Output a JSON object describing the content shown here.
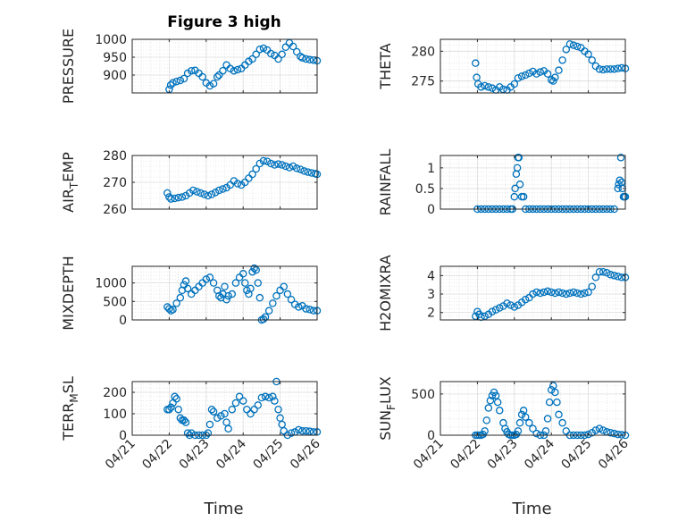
{
  "figure": {
    "title": "Figure 3 high",
    "marker_color": "#0072BD",
    "grid": true,
    "marker": "open-circle"
  },
  "chart_data": [
    {
      "type": "scatter",
      "ylabel": "PRESSURE",
      "xlabel": "",
      "xlim": [
        "04/21",
        "04/26"
      ],
      "ylim": [
        850,
        1000
      ],
      "yticks": [
        900,
        950,
        1000
      ],
      "ytick_labels": [
        "900",
        "950",
        "1000"
      ],
      "x": [
        1.0,
        1.04,
        1.1,
        1.2,
        1.3,
        1.4,
        1.5,
        1.6,
        1.7,
        1.8,
        1.9,
        2.0,
        2.1,
        2.2,
        2.3,
        2.35,
        2.45,
        2.55,
        2.65,
        2.75,
        2.85,
        2.95,
        3.05,
        3.15,
        3.25,
        3.35,
        3.45,
        3.55,
        3.65,
        3.75,
        3.85,
        3.95,
        4.05,
        4.15,
        4.25,
        4.35,
        4.45,
        4.55,
        4.6,
        4.7,
        4.8,
        4.9,
        5.0
      ],
      "y": [
        860,
        872,
        878,
        882,
        885,
        890,
        905,
        912,
        913,
        905,
        895,
        878,
        870,
        876,
        895,
        900,
        912,
        928,
        918,
        912,
        915,
        918,
        928,
        938,
        945,
        958,
        972,
        975,
        970,
        960,
        955,
        945,
        958,
        978,
        990,
        980,
        965,
        952,
        948,
        945,
        943,
        942,
        940
      ]
    },
    {
      "type": "scatter",
      "ylabel": "THETA",
      "xlabel": "",
      "xlim": [
        "04/21",
        "04/26"
      ],
      "ylim": [
        273,
        282
      ],
      "yticks": [
        275,
        280
      ],
      "ytick_labels": [
        "275",
        "280"
      ],
      "x": [
        0.95,
        0.98,
        1.02,
        1.1,
        1.2,
        1.3,
        1.4,
        1.5,
        1.6,
        1.7,
        1.8,
        1.9,
        2.0,
        2.1,
        2.2,
        2.3,
        2.4,
        2.5,
        2.6,
        2.7,
        2.8,
        2.9,
        3.0,
        3.05,
        3.1,
        3.2,
        3.3,
        3.4,
        3.5,
        3.6,
        3.7,
        3.8,
        3.9,
        4.0,
        4.1,
        4.2,
        4.3,
        4.4,
        4.5,
        4.6,
        4.7,
        4.8,
        4.9,
        5.0
      ],
      "y": [
        278,
        275.6,
        274.5,
        274,
        274.2,
        274,
        273.8,
        273.5,
        274,
        273.6,
        273.5,
        274,
        274.5,
        275.5,
        275.8,
        276,
        276.3,
        276.6,
        276.2,
        276.5,
        276.7,
        276.2,
        275.2,
        275,
        275.6,
        276.8,
        278.5,
        280.3,
        281.2,
        281,
        280.8,
        280.6,
        280,
        279.5,
        278.5,
        277.5,
        277,
        276.9,
        277,
        277,
        277,
        277.1,
        277.2,
        277.1
      ]
    },
    {
      "type": "scatter",
      "ylabel": "AIR_TEMP",
      "xlabel": "",
      "xlim": [
        "04/21",
        "04/26"
      ],
      "ylim": [
        260,
        280
      ],
      "yticks": [
        260,
        270,
        280
      ],
      "ytick_labels": [
        "260",
        "270",
        "280"
      ],
      "x": [
        0.95,
        1.0,
        1.05,
        1.15,
        1.25,
        1.35,
        1.45,
        1.55,
        1.65,
        1.75,
        1.85,
        1.95,
        2.05,
        2.15,
        2.25,
        2.35,
        2.45,
        2.55,
        2.65,
        2.75,
        2.85,
        2.95,
        3.05,
        3.15,
        3.25,
        3.35,
        3.45,
        3.55,
        3.65,
        3.75,
        3.85,
        3.95,
        4.05,
        4.15,
        4.25,
        4.35,
        4.45,
        4.55,
        4.65,
        4.75,
        4.85,
        4.95,
        5.0
      ],
      "y": [
        266,
        264.5,
        263.8,
        264,
        264.3,
        264.5,
        265,
        266,
        267,
        266.5,
        266,
        265.5,
        265,
        265.5,
        266.2,
        267,
        267.5,
        268,
        269,
        270.5,
        269.5,
        269,
        270,
        271.5,
        273,
        275,
        277,
        278,
        277.8,
        277,
        276.5,
        276.8,
        276.5,
        276,
        275.5,
        276,
        275.2,
        274.8,
        274.2,
        273.8,
        273.5,
        273.2,
        273
      ]
    },
    {
      "type": "scatter",
      "ylabel": "RAINFALL",
      "xlabel": "",
      "xlim": [
        "04/21",
        "04/26"
      ],
      "ylim": [
        0,
        1.3
      ],
      "yticks": [
        0,
        0.5,
        1
      ],
      "ytick_labels": [
        "0",
        "0.5",
        "1"
      ],
      "x": [
        1.0,
        1.1,
        1.2,
        1.3,
        1.4,
        1.5,
        1.6,
        1.7,
        1.8,
        1.9,
        1.95,
        2.0,
        2.02,
        2.05,
        2.08,
        2.1,
        2.12,
        2.15,
        2.2,
        2.25,
        2.3,
        2.4,
        2.5,
        2.6,
        2.7,
        2.8,
        2.9,
        3.0,
        3.1,
        3.2,
        3.3,
        3.4,
        3.5,
        3.6,
        3.7,
        3.8,
        3.9,
        4.0,
        4.1,
        4.2,
        4.3,
        4.4,
        4.5,
        4.6,
        4.7,
        4.8,
        4.82,
        4.85,
        4.88,
        4.9,
        4.92,
        4.95,
        4.97,
        5.0
      ],
      "y": [
        0,
        0,
        0,
        0,
        0,
        0,
        0,
        0,
        0,
        0,
        0,
        0.3,
        0.5,
        0.85,
        1.0,
        1.25,
        1.25,
        0.6,
        0.3,
        0.3,
        0,
        0,
        0,
        0,
        0,
        0,
        0,
        0,
        0,
        0,
        0,
        0,
        0,
        0,
        0,
        0,
        0,
        0,
        0,
        0,
        0,
        0,
        0,
        0,
        0,
        0.5,
        0.6,
        0.7,
        1.25,
        0.65,
        0.5,
        0.3,
        0.3,
        0.3
      ]
    },
    {
      "type": "scatter",
      "ylabel": "MIXDEPTH",
      "xlabel": "",
      "xlim": [
        "04/21",
        "04/26"
      ],
      "ylim": [
        0,
        1450
      ],
      "yticks": [
        0,
        500,
        1000
      ],
      "ytick_labels": [
        "0",
        "500",
        "1000"
      ],
      "x": [
        0.95,
        1.0,
        1.05,
        1.1,
        1.2,
        1.3,
        1.35,
        1.4,
        1.45,
        1.5,
        1.6,
        1.7,
        1.8,
        1.9,
        2.0,
        2.1,
        2.2,
        2.3,
        2.35,
        2.4,
        2.45,
        2.5,
        2.55,
        2.6,
        2.7,
        2.8,
        2.9,
        3.0,
        3.05,
        3.1,
        3.15,
        3.2,
        3.25,
        3.3,
        3.35,
        3.4,
        3.45,
        3.5,
        3.55,
        3.6,
        3.7,
        3.8,
        3.9,
        4.0,
        4.1,
        4.2,
        4.3,
        4.4,
        4.5,
        4.6,
        4.7,
        4.8,
        4.9,
        5.0
      ],
      "y": [
        350,
        300,
        250,
        280,
        450,
        600,
        800,
        950,
        1050,
        850,
        700,
        800,
        900,
        1000,
        1100,
        1150,
        1000,
        800,
        650,
        600,
        700,
        900,
        550,
        650,
        700,
        1000,
        1150,
        1250,
        1000,
        800,
        700,
        850,
        1300,
        1400,
        1350,
        1000,
        600,
        0,
        20,
        80,
        250,
        450,
        650,
        800,
        900,
        700,
        550,
        420,
        350,
        380,
        300,
        280,
        250,
        250
      ]
    },
    {
      "type": "scatter",
      "ylabel": "H2OMIXRA",
      "xlabel": "",
      "xlim": [
        "04/21",
        "04/26"
      ],
      "ylim": [
        1.6,
        4.5
      ],
      "yticks": [
        2,
        3,
        4
      ],
      "ytick_labels": [
        "2",
        "3",
        "4"
      ],
      "x": [
        0.95,
        1.0,
        1.05,
        1.1,
        1.2,
        1.3,
        1.4,
        1.5,
        1.6,
        1.7,
        1.8,
        1.9,
        2.0,
        2.1,
        2.2,
        2.3,
        2.4,
        2.5,
        2.6,
        2.7,
        2.8,
        2.9,
        3.0,
        3.1,
        3.2,
        3.3,
        3.4,
        3.5,
        3.6,
        3.7,
        3.8,
        3.9,
        4.0,
        4.1,
        4.2,
        4.3,
        4.4,
        4.5,
        4.6,
        4.7,
        4.8,
        4.9,
        5.0
      ],
      "y": [
        1.8,
        2.05,
        1.9,
        1.75,
        1.8,
        1.9,
        2.05,
        2.15,
        2.25,
        2.35,
        2.5,
        2.4,
        2.3,
        2.4,
        2.55,
        2.7,
        2.8,
        3.0,
        3.1,
        3.05,
        3.1,
        3.15,
        3.1,
        3.05,
        3.1,
        3.05,
        3.0,
        3.05,
        3.1,
        3.05,
        3.0,
        3.05,
        3.1,
        3.4,
        3.9,
        4.2,
        4.2,
        4.15,
        4.05,
        4.0,
        3.95,
        3.9,
        3.9
      ]
    },
    {
      "type": "scatter",
      "ylabel": "TERR_MSL",
      "xlabel": "Time",
      "xlim": [
        "04/21",
        "04/26"
      ],
      "ylim": [
        0,
        250
      ],
      "yticks": [
        0,
        100,
        200
      ],
      "ytick_labels": [
        "0",
        "100",
        "200"
      ],
      "xticks": [
        "04/21",
        "04/22",
        "04/23",
        "04/24",
        "04/25",
        "04/26"
      ],
      "x": [
        0.95,
        1.0,
        1.05,
        1.1,
        1.15,
        1.2,
        1.25,
        1.3,
        1.35,
        1.4,
        1.45,
        1.5,
        1.55,
        1.6,
        1.7,
        1.8,
        1.9,
        2.0,
        2.05,
        2.1,
        2.15,
        2.2,
        2.3,
        2.4,
        2.5,
        2.55,
        2.6,
        2.7,
        2.8,
        2.9,
        3.0,
        3.1,
        3.2,
        3.3,
        3.4,
        3.5,
        3.6,
        3.7,
        3.8,
        3.85,
        3.9,
        3.95,
        4.0,
        4.05,
        4.1,
        4.2,
        4.3,
        4.4,
        4.5,
        4.6,
        4.7,
        4.8,
        4.9,
        5.0
      ],
      "y": [
        120,
        120,
        130,
        150,
        180,
        170,
        120,
        80,
        70,
        70,
        60,
        10,
        0,
        10,
        0,
        0,
        0,
        0,
        10,
        50,
        120,
        110,
        80,
        90,
        100,
        60,
        30,
        120,
        150,
        180,
        160,
        120,
        100,
        120,
        140,
        175,
        180,
        175,
        180,
        160,
        250,
        120,
        80,
        50,
        20,
        0,
        10,
        15,
        25,
        20,
        20,
        18,
        15,
        15
      ]
    },
    {
      "type": "scatter",
      "ylabel": "SUN_FLUX",
      "xlabel": "Time",
      "xlim": [
        "04/21",
        "04/26"
      ],
      "ylim": [
        0,
        650
      ],
      "yticks": [
        0,
        500
      ],
      "ytick_labels": [
        "0",
        "500"
      ],
      "xticks": [
        "04/21",
        "04/22",
        "04/23",
        "04/24",
        "04/25",
        "04/26"
      ],
      "x": [
        0.95,
        1.0,
        1.05,
        1.1,
        1.15,
        1.2,
        1.25,
        1.3,
        1.35,
        1.4,
        1.45,
        1.5,
        1.55,
        1.6,
        1.7,
        1.75,
        1.8,
        1.85,
        1.9,
        1.95,
        2.0,
        2.05,
        2.1,
        2.15,
        2.2,
        2.25,
        2.3,
        2.4,
        2.5,
        2.6,
        2.7,
        2.8,
        2.85,
        2.9,
        2.95,
        3.0,
        3.05,
        3.1,
        3.15,
        3.2,
        3.3,
        3.4,
        3.5,
        3.6,
        3.7,
        3.8,
        3.9,
        4.0,
        4.1,
        4.2,
        4.3,
        4.4,
        4.5,
        4.6,
        4.7,
        4.8,
        4.9,
        5.0
      ],
      "y": [
        0,
        0,
        0,
        0,
        10,
        50,
        180,
        330,
        420,
        480,
        520,
        480,
        400,
        300,
        150,
        80,
        40,
        10,
        0,
        0,
        0,
        10,
        50,
        150,
        250,
        300,
        220,
        150,
        80,
        20,
        0,
        0,
        50,
        200,
        400,
        550,
        600,
        520,
        400,
        250,
        150,
        50,
        0,
        0,
        0,
        0,
        0,
        10,
        30,
        60,
        80,
        60,
        40,
        30,
        20,
        10,
        5,
        0
      ]
    }
  ]
}
